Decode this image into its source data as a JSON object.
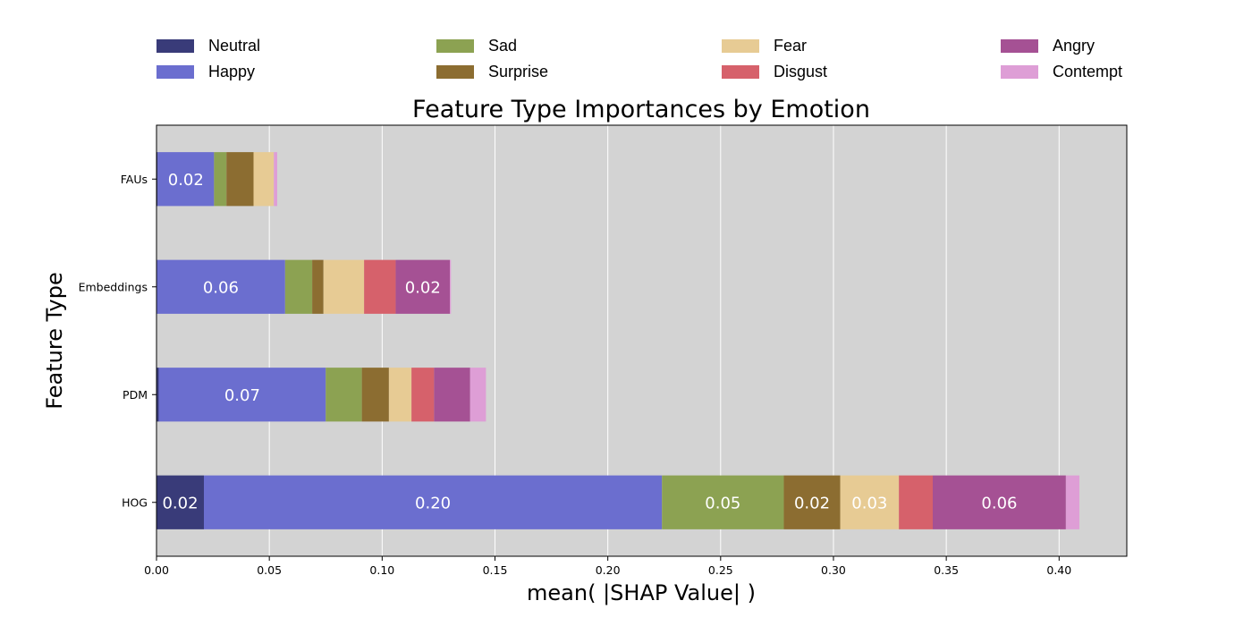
{
  "chart_data": {
    "type": "bar",
    "orientation": "horizontal",
    "stacked": true,
    "title": "Feature Type Importances by Emotion",
    "xlabel": "mean( |SHAP Value| )",
    "ylabel": "Feature Type",
    "categories": [
      "HOG",
      "PDM",
      "Embeddings",
      "FAUs"
    ],
    "xlim": [
      0,
      0.43
    ],
    "xticks": [
      "0.00",
      "0.05",
      "0.10",
      "0.15",
      "0.20",
      "0.25",
      "0.30",
      "0.35",
      "0.40"
    ],
    "background": "#d3d3d3",
    "grid": "vertical, white",
    "legend_position": "top, above plot",
    "series": [
      {
        "name": "Neutral",
        "color": "#393b79",
        "values": [
          0.021,
          0.001,
          0.0,
          0.0005
        ]
      },
      {
        "name": "Happy",
        "color": "#6b6ecf",
        "values": [
          0.203,
          0.074,
          0.057,
          0.025
        ]
      },
      {
        "name": "Sad",
        "color": "#8ca252",
        "values": [
          0.054,
          0.016,
          0.012,
          0.0055
        ]
      },
      {
        "name": "Surprise",
        "color": "#8c6d31",
        "values": [
          0.025,
          0.012,
          0.005,
          0.012
        ]
      },
      {
        "name": "Fear",
        "color": "#e7cb94",
        "values": [
          0.026,
          0.01,
          0.018,
          0.009
        ]
      },
      {
        "name": "Disgust",
        "color": "#d6616b",
        "values": [
          0.015,
          0.01,
          0.014,
          0.0
        ]
      },
      {
        "name": "Angry",
        "color": "#a55194",
        "values": [
          0.059,
          0.016,
          0.024,
          0.0
        ]
      },
      {
        "name": "Contempt",
        "color": "#de9ed6",
        "values": [
          0.006,
          0.007,
          0.0005,
          0.0015
        ]
      }
    ],
    "data_labels": [
      {
        "category": "HOG",
        "series": "Neutral",
        "text": "0.02"
      },
      {
        "category": "HOG",
        "series": "Happy",
        "text": "0.20"
      },
      {
        "category": "HOG",
        "series": "Sad",
        "text": "0.05"
      },
      {
        "category": "HOG",
        "series": "Surprise",
        "text": "0.02"
      },
      {
        "category": "HOG",
        "series": "Fear",
        "text": "0.03"
      },
      {
        "category": "HOG",
        "series": "Angry",
        "text": "0.06"
      },
      {
        "category": "PDM",
        "series": "Happy",
        "text": "0.07"
      },
      {
        "category": "Embeddings",
        "series": "Happy",
        "text": "0.06"
      },
      {
        "category": "Embeddings",
        "series": "Angry",
        "text": "0.02"
      },
      {
        "category": "FAUs",
        "series": "Happy",
        "text": "0.02"
      }
    ]
  }
}
